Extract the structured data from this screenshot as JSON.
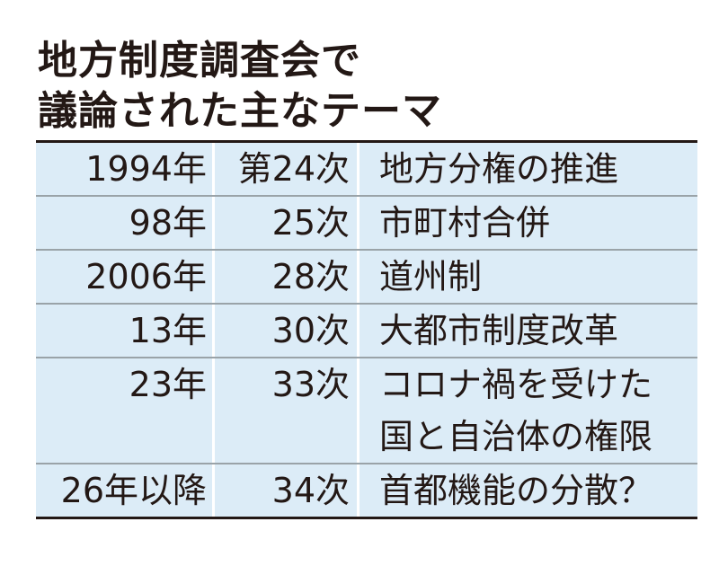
{
  "header": {
    "title": [
      "地方制度調査会で",
      "議論された主なテーマ"
    ]
  },
  "table": {
    "rows": [
      [
        "1994年",
        "第24次",
        [
          "地方分権の推進"
        ]
      ],
      [
        "98年",
        "25次",
        [
          "市町村合併"
        ]
      ],
      [
        "2006年",
        "28次",
        [
          "道州制"
        ]
      ],
      [
        "13年",
        "30次",
        [
          "大都市制度改革"
        ]
      ],
      [
        "23年",
        "33次",
        [
          "コロナ禍を受けた",
          "国と自治体の権限"
        ]
      ],
      [
        "26年以降",
        "34次",
        [
          "首都機能の分散？"
        ]
      ]
    ]
  }
}
